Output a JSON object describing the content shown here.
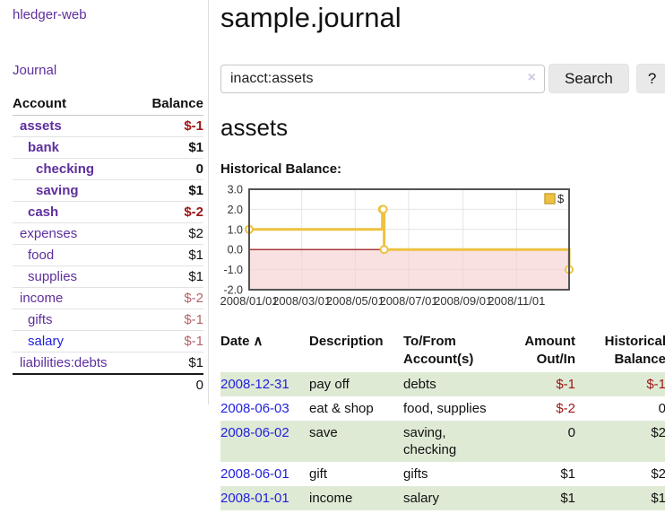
{
  "app": {
    "title": "hledger-web",
    "nav_journal": "Journal"
  },
  "sidebar": {
    "header": {
      "account": "Account",
      "balance": "Balance"
    },
    "accounts": [
      {
        "name": "assets",
        "depth": 0,
        "balance": "$-1",
        "bold": true,
        "negative": true,
        "blue": false
      },
      {
        "name": "bank",
        "depth": 1,
        "balance": "$1",
        "bold": true,
        "negative": false,
        "blue": false
      },
      {
        "name": "checking",
        "depth": 2,
        "balance": "0",
        "bold": true,
        "negative": false,
        "blue": false
      },
      {
        "name": "saving",
        "depth": 2,
        "balance": "$1",
        "bold": true,
        "negative": false,
        "blue": false
      },
      {
        "name": "cash",
        "depth": 1,
        "balance": "$-2",
        "bold": true,
        "negative": true,
        "blue": false
      },
      {
        "name": "expenses",
        "depth": 0,
        "balance": "$2",
        "bold": false,
        "negative": false,
        "blue": false
      },
      {
        "name": "food",
        "depth": 1,
        "balance": "$1",
        "bold": false,
        "negative": false,
        "blue": false
      },
      {
        "name": "supplies",
        "depth": 1,
        "balance": "$1",
        "bold": false,
        "negative": false,
        "blue": false
      },
      {
        "name": "income",
        "depth": 0,
        "balance": "$-2",
        "bold": false,
        "negative": true,
        "blue": false
      },
      {
        "name": "gifts",
        "depth": 1,
        "balance": "$-1",
        "bold": false,
        "negative": true,
        "blue": false
      },
      {
        "name": "salary",
        "depth": 1,
        "balance": "$-1",
        "bold": false,
        "negative": true,
        "blue": true
      },
      {
        "name": "liabilities:debts",
        "depth": 0,
        "balance": "$1",
        "bold": false,
        "negative": false,
        "blue": false
      }
    ],
    "total": "0"
  },
  "main": {
    "title": "sample.journal",
    "search": {
      "value": "inacct:assets",
      "clear_icon": "×",
      "button": "Search",
      "help": "?"
    },
    "heading": "assets",
    "chart_label": "Historical Balance:"
  },
  "chart_data": {
    "type": "line",
    "step": true,
    "title": "Historical Balance:",
    "legend": {
      "position": "top-right",
      "entries": [
        {
          "label": "$",
          "color": "#edc240"
        }
      ]
    },
    "x": {
      "range_days": [
        0,
        365
      ],
      "ticks": [
        {
          "d": 0,
          "label": "2008/01/01"
        },
        {
          "d": 60,
          "label": "2008/03/01"
        },
        {
          "d": 121,
          "label": "2008/05/01"
        },
        {
          "d": 182,
          "label": "2008/07/01"
        },
        {
          "d": 244,
          "label": "2008/09/01"
        },
        {
          "d": 305,
          "label": "2008/11/01"
        }
      ]
    },
    "y": {
      "range": [
        -2,
        3
      ],
      "ticks": [
        {
          "v": 3,
          "label": "3.0"
        },
        {
          "v": 2,
          "label": "2.0"
        },
        {
          "v": 1,
          "label": "1.0"
        },
        {
          "v": 0,
          "label": "0.0"
        },
        {
          "v": -1,
          "label": "-1.0"
        },
        {
          "v": -2,
          "label": "-2.0"
        }
      ]
    },
    "series": [
      {
        "name": "$",
        "color": "#edc240",
        "marker_fill": "#ffffff",
        "points": [
          {
            "date": "2008-01-01",
            "d": 0,
            "v": 1
          },
          {
            "date": "2008-06-01",
            "d": 152,
            "v": 2
          },
          {
            "date": "2008-06-02",
            "d": 153,
            "v": 2
          },
          {
            "date": "2008-06-03",
            "d": 154,
            "v": 0
          },
          {
            "date": "2008-12-31",
            "d": 365,
            "v": -1
          }
        ]
      }
    ],
    "negative_area_color": "#f6cfcf",
    "zero_line_color": "#8b0000",
    "grid_color": "#e4e4e4",
    "border_color": "#545454",
    "tick_label_color": "#333333"
  },
  "register": {
    "columns": [
      {
        "label": "Date",
        "sort": "∧",
        "align": "left"
      },
      {
        "label": "Description",
        "align": "left"
      },
      {
        "label": "To/From Account(s)",
        "align": "left"
      },
      {
        "label": "Amount Out/In",
        "align": "right"
      },
      {
        "label": "Historical Balance",
        "align": "right"
      }
    ],
    "rows": [
      {
        "date": "2008-12-31",
        "description": "pay off",
        "accounts": "debts",
        "amount": "$-1",
        "amount_negative": true,
        "balance": "$-1",
        "balance_negative": true
      },
      {
        "date": "2008-06-03",
        "description": "eat & shop",
        "accounts": "food, supplies",
        "amount": "$-2",
        "amount_negative": true,
        "balance": "0",
        "balance_negative": false
      },
      {
        "date": "2008-06-02",
        "description": "save",
        "accounts": "saving, checking",
        "amount": "0",
        "amount_negative": false,
        "balance": "$2",
        "balance_negative": false
      },
      {
        "date": "2008-06-01",
        "description": "gift",
        "accounts": "gifts",
        "amount": "$1",
        "amount_negative": false,
        "balance": "$2",
        "balance_negative": false
      },
      {
        "date": "2008-01-01",
        "description": "income",
        "accounts": "salary",
        "amount": "$1",
        "amount_negative": false,
        "balance": "$1",
        "balance_negative": false
      }
    ]
  },
  "colors": {
    "link_purple": "#5e2f9d",
    "link_blue": "#2222dd",
    "negative_dark": "#9c1515",
    "negative_light": "#b56268",
    "row_stripe_green": "#dfead5",
    "series_gold": "#edc240",
    "negative_area_pink": "#f6cfcf",
    "zero_line_red": "#8b0000",
    "button_gray": "#e9e9e9"
  }
}
